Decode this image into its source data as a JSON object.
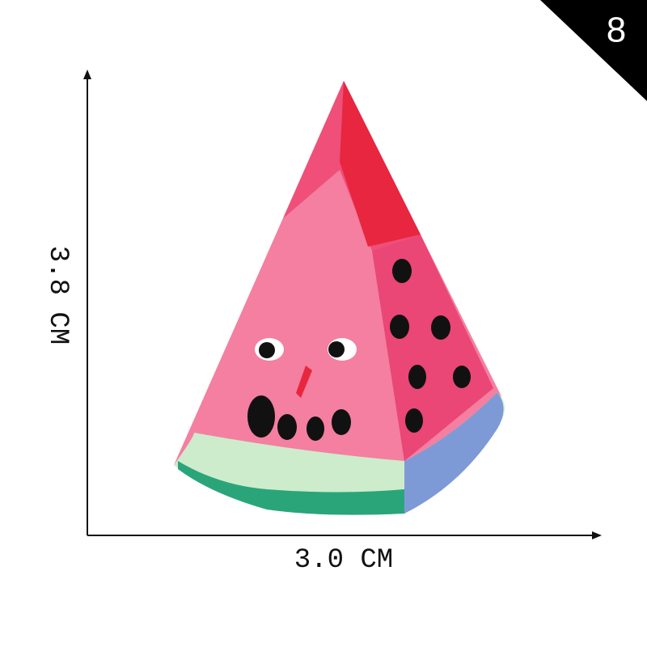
{
  "badge": "8",
  "width_label": "3.0 CM",
  "height_label": "3.8 CM"
}
